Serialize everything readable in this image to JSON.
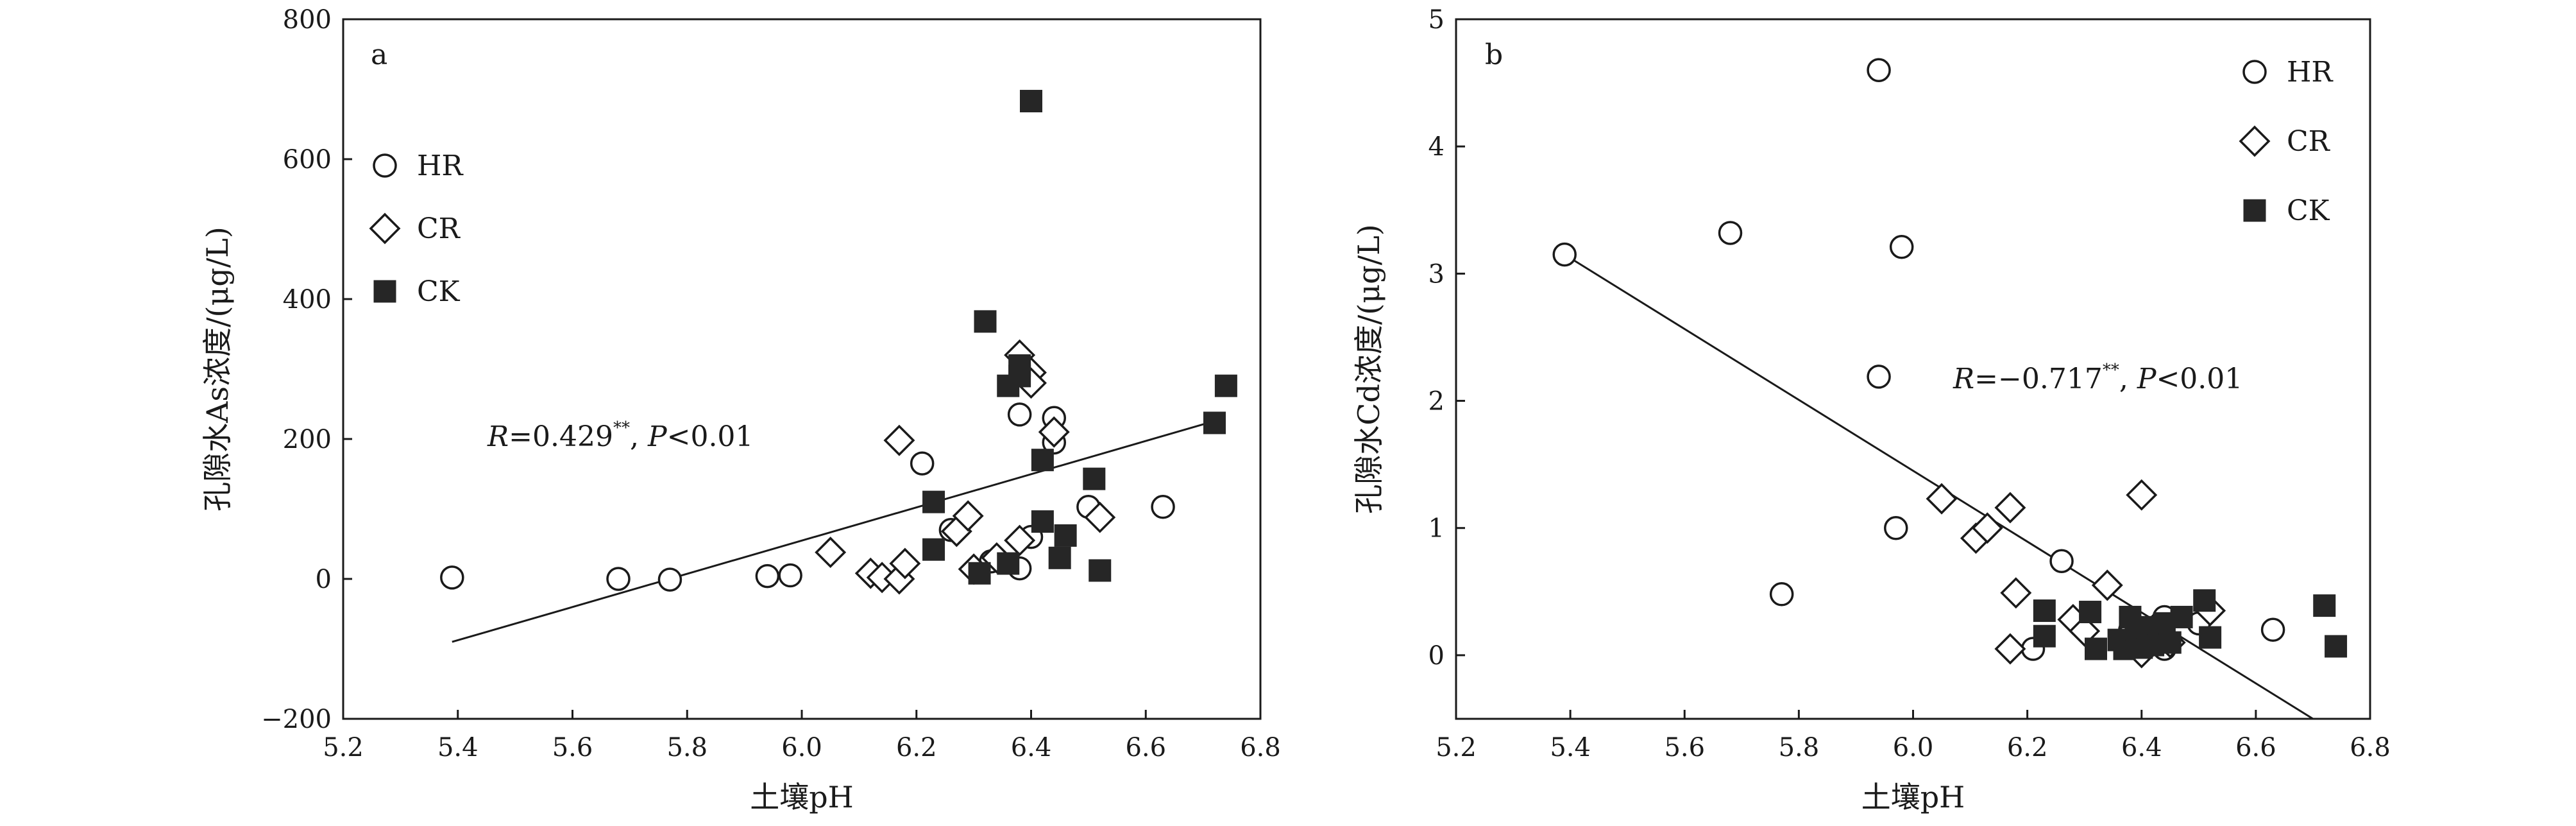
{
  "chart_data": [
    {
      "type": "scatter",
      "panel_label": "a",
      "xlabel": "土壤pH",
      "ylabel": "孔隙水As浓度/(μg/L)",
      "xlim": [
        5.2,
        6.8
      ],
      "ylim": [
        -200,
        800
      ],
      "xticks": [
        "5.2",
        "5.4",
        "5.6",
        "5.8",
        "6.0",
        "6.2",
        "6.4",
        "6.6",
        "6.8"
      ],
      "yticks": [
        "−200",
        "0",
        "200",
        "400",
        "600",
        "800"
      ],
      "grid": false,
      "legend_position": "left",
      "annotation": {
        "r_label": "R",
        "r_value": "=0.429",
        "sig": "**",
        "sep": ", ",
        "p_label": "P",
        "p_value": "<0.01"
      },
      "fit_line": {
        "x": [
          5.39,
          6.73
        ],
        "y": [
          -90,
          228
        ]
      },
      "series": [
        {
          "name": "HR",
          "marker": "circle-open",
          "points": [
            [
              5.39,
              2
            ],
            [
              5.68,
              0
            ],
            [
              5.77,
              -1
            ],
            [
              5.94,
              4
            ],
            [
              5.98,
              5
            ],
            [
              6.21,
              165
            ],
            [
              6.26,
              70
            ],
            [
              6.38,
              235
            ],
            [
              6.4,
              60
            ],
            [
              6.44,
              230
            ],
            [
              6.44,
              195
            ],
            [
              6.5,
              103
            ],
            [
              6.63,
              103
            ],
            [
              6.38,
              15
            ],
            [
              6.33,
              25
            ]
          ]
        },
        {
          "name": "CR",
          "marker": "diamond-open",
          "points": [
            [
              6.05,
              38
            ],
            [
              6.12,
              8
            ],
            [
              6.14,
              2
            ],
            [
              6.17,
              198
            ],
            [
              6.17,
              0
            ],
            [
              6.18,
              22
            ],
            [
              6.27,
              68
            ],
            [
              6.29,
              90
            ],
            [
              6.3,
              14
            ],
            [
              6.34,
              30
            ],
            [
              6.38,
              320
            ],
            [
              6.38,
              55
            ],
            [
              6.4,
              295
            ],
            [
              6.4,
              280
            ],
            [
              6.44,
              210
            ],
            [
              6.52,
              88
            ]
          ]
        },
        {
          "name": "CK",
          "marker": "square-filled",
          "points": [
            [
              6.23,
              110
            ],
            [
              6.23,
              42
            ],
            [
              6.31,
              8
            ],
            [
              6.32,
              368
            ],
            [
              6.36,
              276
            ],
            [
              6.36,
              22
            ],
            [
              6.38,
              305
            ],
            [
              6.38,
              290
            ],
            [
              6.4,
              683
            ],
            [
              6.42,
              170
            ],
            [
              6.42,
              82
            ],
            [
              6.45,
              30
            ],
            [
              6.46,
              62
            ],
            [
              6.51,
              143
            ],
            [
              6.52,
              12
            ],
            [
              6.72,
              223
            ],
            [
              6.74,
              276
            ]
          ]
        }
      ]
    },
    {
      "type": "scatter",
      "panel_label": "b",
      "xlabel": "土壤pH",
      "ylabel": "孔隙水Cd浓度/(μg/L)",
      "xlim": [
        5.2,
        6.8
      ],
      "ylim": [
        -0.5,
        5
      ],
      "xticks": [
        "5.2",
        "5.4",
        "5.6",
        "5.8",
        "6.0",
        "6.2",
        "6.4",
        "6.6",
        "6.8"
      ],
      "yticks": [
        "0",
        "1",
        "2",
        "3",
        "4",
        "5"
      ],
      "grid": false,
      "legend_position": "top-right",
      "annotation": {
        "r_label": "R",
        "r_value": "=−0.717",
        "sig": "**",
        "sep": ", ",
        "p_label": "P",
        "p_value": "<0.01"
      },
      "fit_line": {
        "x": [
          5.39,
          6.7
        ],
        "y": [
          3.15,
          -0.5
        ]
      },
      "series": [
        {
          "name": "HR",
          "marker": "circle-open",
          "points": [
            [
              5.39,
              3.15
            ],
            [
              5.68,
              3.32
            ],
            [
              5.94,
              4.6
            ],
            [
              5.98,
              3.21
            ],
            [
              5.94,
              2.19
            ],
            [
              5.97,
              1.0
            ],
            [
              5.77,
              0.48
            ],
            [
              6.26,
              0.74
            ],
            [
              6.21,
              0.05
            ],
            [
              6.38,
              0.2
            ],
            [
              6.44,
              0.3
            ],
            [
              6.44,
              0.05
            ],
            [
              6.5,
              0.25
            ],
            [
              6.63,
              0.2
            ]
          ]
        },
        {
          "name": "CR",
          "marker": "diamond-open",
          "points": [
            [
              6.05,
              1.23
            ],
            [
              6.11,
              0.92
            ],
            [
              6.13,
              1.0
            ],
            [
              6.17,
              1.16
            ],
            [
              6.18,
              0.49
            ],
            [
              6.17,
              0.05
            ],
            [
              6.28,
              0.28
            ],
            [
              6.3,
              0.19
            ],
            [
              6.34,
              0.55
            ],
            [
              6.37,
              0.13
            ],
            [
              6.4,
              1.26
            ],
            [
              6.4,
              0.02
            ],
            [
              6.42,
              0.2
            ],
            [
              6.45,
              0.1
            ],
            [
              6.52,
              0.35
            ]
          ]
        },
        {
          "name": "CK",
          "marker": "square-filled",
          "points": [
            [
              6.23,
              0.35
            ],
            [
              6.23,
              0.15
            ],
            [
              6.31,
              0.34
            ],
            [
              6.32,
              0.05
            ],
            [
              6.36,
              0.12
            ],
            [
              6.37,
              0.05
            ],
            [
              6.38,
              0.3
            ],
            [
              6.39,
              0.2
            ],
            [
              6.4,
              0.06
            ],
            [
              6.41,
              0.22
            ],
            [
              6.42,
              0.08
            ],
            [
              6.43,
              0.18
            ],
            [
              6.44,
              0.25
            ],
            [
              6.45,
              0.1
            ],
            [
              6.47,
              0.3
            ],
            [
              6.51,
              0.43
            ],
            [
              6.52,
              0.14
            ],
            [
              6.72,
              0.39
            ],
            [
              6.74,
              0.07
            ]
          ]
        }
      ]
    }
  ]
}
